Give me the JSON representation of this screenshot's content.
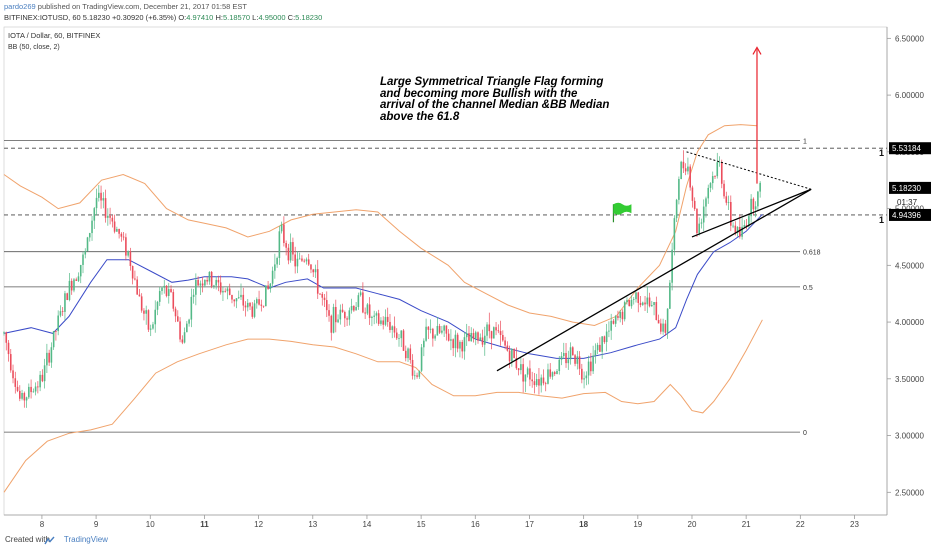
{
  "header": {
    "author": "pardo269",
    "published": "published on TradingView.com, December 21, 2017 01:58 EST",
    "symbol": "BITFINEX:IOTUSD, 60",
    "last": "5.18230",
    "change": "+0.30920 (+6.35%)",
    "ohlc_open_label": "O:",
    "ohlc_open": "4.97410",
    "ohlc_high_label": "H:",
    "ohlc_high": "5.18570",
    "ohlc_low_label": "L:",
    "ohlc_low": "4.95000",
    "ohlc_close_label": "C:",
    "ohlc_close": "5.18230"
  },
  "footer": {
    "created_with": "Created with",
    "brand": "TradingView"
  },
  "colors": {
    "up": "#53b987",
    "down": "#eb4d5c",
    "bb_outer": "#f0a36c",
    "bb_basis": "#3b4bc8",
    "trendline": "#000000",
    "arrow": "#e8202a",
    "grid": "#000000",
    "flag": "#33cc33",
    "price_tag": "#000000"
  },
  "chart_data": {
    "type": "candlestick",
    "title": "IOTA / Dollar, 60, BITFINEX",
    "indicator": "BB (50, close, 2)",
    "ylim": [
      2.3,
      6.6
    ],
    "xlim": [
      7.3,
      23.6
    ],
    "yticks": [
      2.5,
      3.0,
      3.5,
      4.0,
      4.5,
      5.0,
      5.5,
      6.0,
      6.5
    ],
    "ytick_labels": [
      "2.50000",
      "3.00000",
      "3.50000",
      "4.00000",
      "4.50000",
      "5.00000",
      "5.50000",
      "6.00000",
      "6.50000"
    ],
    "xticks": [
      8,
      9,
      10,
      11,
      12,
      13,
      14,
      15,
      16,
      17,
      18,
      19,
      20,
      21,
      22,
      23
    ],
    "xtick_labels": [
      "8",
      "9",
      "10",
      "11",
      "12",
      "13",
      "14",
      "15",
      "16",
      "17",
      "18",
      "19",
      "20",
      "21",
      "22",
      "23"
    ],
    "bold_xticks": [
      "11",
      "18"
    ],
    "fib_levels": [
      {
        "label": "1",
        "value": 5.6
      },
      {
        "label": "0.618",
        "value": 4.62
      },
      {
        "label": "0.5",
        "value": 4.31
      },
      {
        "label": "0",
        "value": 3.03
      }
    ],
    "dashed_levels": [
      {
        "value": 5.53184,
        "label": "5.53184",
        "marker": "1"
      },
      {
        "value": 4.94396,
        "label": "4.94396",
        "marker": "1"
      }
    ],
    "last_price": {
      "value": 5.1823,
      "label": "5.18230",
      "countdown": "01:37"
    },
    "annotation": "Large Symmetrical Triangle Flag forming and becoming more Bullish with the arrival of the channel Median &BB Median above the 61.8",
    "trendlines": [
      {
        "style": "solid",
        "from": [
          16.4,
          3.57
        ],
        "to": [
          22.2,
          5.17
        ]
      },
      {
        "style": "solid",
        "from": [
          20.0,
          4.75
        ],
        "to": [
          22.2,
          5.17
        ]
      },
      {
        "style": "dotted",
        "from": [
          19.9,
          5.5
        ],
        "to": [
          22.2,
          5.17
        ]
      }
    ],
    "arrow": {
      "from": [
        21.2,
        5.22
      ],
      "to": [
        21.2,
        6.42
      ]
    },
    "flag": {
      "x": 18.55,
      "y": 4.95
    },
    "bb_basis": [
      [
        7.3,
        3.9
      ],
      [
        7.8,
        3.95
      ],
      [
        8.2,
        3.9
      ],
      [
        8.5,
        4.05
      ],
      [
        8.9,
        4.35
      ],
      [
        9.2,
        4.55
      ],
      [
        9.6,
        4.55
      ],
      [
        10.0,
        4.45
      ],
      [
        10.4,
        4.35
      ],
      [
        10.7,
        4.37
      ],
      [
        11.0,
        4.4
      ],
      [
        11.5,
        4.4
      ],
      [
        11.8,
        4.38
      ],
      [
        12.2,
        4.3
      ],
      [
        12.5,
        4.35
      ],
      [
        12.9,
        4.38
      ],
      [
        13.2,
        4.3
      ],
      [
        13.5,
        4.3
      ],
      [
        13.8,
        4.3
      ],
      [
        14.2,
        4.25
      ],
      [
        14.6,
        4.2
      ],
      [
        15.0,
        4.1
      ],
      [
        15.5,
        4.0
      ],
      [
        16.0,
        3.85
      ],
      [
        16.5,
        3.78
      ],
      [
        17.0,
        3.72
      ],
      [
        17.5,
        3.68
      ],
      [
        18.0,
        3.68
      ],
      [
        18.5,
        3.73
      ],
      [
        19.0,
        3.8
      ],
      [
        19.4,
        3.85
      ],
      [
        19.7,
        3.95
      ],
      [
        19.9,
        4.2
      ],
      [
        20.1,
        4.42
      ],
      [
        20.4,
        4.62
      ],
      [
        20.7,
        4.7
      ],
      [
        21.0,
        4.8
      ],
      [
        21.3,
        4.95
      ]
    ],
    "bb_upper": [
      [
        7.3,
        5.3
      ],
      [
        7.6,
        5.2
      ],
      [
        8.0,
        5.1
      ],
      [
        8.3,
        5.0
      ],
      [
        8.7,
        5.05
      ],
      [
        9.1,
        5.25
      ],
      [
        9.5,
        5.3
      ],
      [
        9.9,
        5.22
      ],
      [
        10.3,
        5.0
      ],
      [
        10.7,
        4.9
      ],
      [
        11.0,
        4.87
      ],
      [
        11.4,
        4.83
      ],
      [
        11.8,
        4.75
      ],
      [
        12.2,
        4.8
      ],
      [
        12.6,
        4.9
      ],
      [
        13.0,
        4.95
      ],
      [
        13.4,
        4.97
      ],
      [
        13.8,
        4.99
      ],
      [
        14.2,
        4.97
      ],
      [
        14.6,
        4.8
      ],
      [
        15.0,
        4.65
      ],
      [
        15.5,
        4.5
      ],
      [
        15.8,
        4.35
      ],
      [
        16.2,
        4.25
      ],
      [
        16.6,
        4.15
      ],
      [
        17.0,
        4.08
      ],
      [
        17.4,
        4.05
      ],
      [
        17.8,
        4.0
      ],
      [
        18.2,
        3.97
      ],
      [
        18.6,
        4.05
      ],
      [
        19.0,
        4.3
      ],
      [
        19.4,
        4.5
      ],
      [
        19.7,
        4.8
      ],
      [
        19.9,
        5.2
      ],
      [
        20.1,
        5.5
      ],
      [
        20.3,
        5.65
      ],
      [
        20.6,
        5.73
      ],
      [
        20.9,
        5.74
      ],
      [
        21.2,
        5.73
      ]
    ],
    "bb_lower": [
      [
        7.3,
        2.5
      ],
      [
        7.7,
        2.78
      ],
      [
        8.1,
        2.95
      ],
      [
        8.5,
        3.02
      ],
      [
        8.9,
        3.05
      ],
      [
        9.3,
        3.1
      ],
      [
        9.7,
        3.32
      ],
      [
        10.1,
        3.55
      ],
      [
        10.5,
        3.65
      ],
      [
        10.9,
        3.72
      ],
      [
        11.4,
        3.8
      ],
      [
        11.8,
        3.85
      ],
      [
        12.2,
        3.85
      ],
      [
        12.6,
        3.83
      ],
      [
        13.0,
        3.8
      ],
      [
        13.4,
        3.78
      ],
      [
        13.8,
        3.72
      ],
      [
        14.2,
        3.65
      ],
      [
        14.6,
        3.65
      ],
      [
        14.9,
        3.6
      ],
      [
        15.2,
        3.45
      ],
      [
        15.6,
        3.35
      ],
      [
        16.0,
        3.35
      ],
      [
        16.4,
        3.38
      ],
      [
        16.8,
        3.38
      ],
      [
        17.2,
        3.35
      ],
      [
        17.6,
        3.33
      ],
      [
        18.0,
        3.37
      ],
      [
        18.4,
        3.38
      ],
      [
        18.7,
        3.3
      ],
      [
        19.0,
        3.28
      ],
      [
        19.3,
        3.3
      ],
      [
        19.6,
        3.45
      ],
      [
        19.8,
        3.35
      ],
      [
        20.0,
        3.22
      ],
      [
        20.2,
        3.2
      ],
      [
        20.4,
        3.3
      ],
      [
        20.7,
        3.5
      ],
      [
        21.0,
        3.75
      ],
      [
        21.3,
        4.02
      ]
    ],
    "candle_anchors": [
      [
        7.3,
        3.9
      ],
      [
        7.6,
        3.3
      ],
      [
        8.0,
        3.5
      ],
      [
        8.3,
        4.0
      ],
      [
        8.5,
        4.3
      ],
      [
        8.8,
        4.6
      ],
      [
        9.0,
        5.1
      ],
      [
        9.3,
        4.9
      ],
      [
        9.6,
        4.6
      ],
      [
        9.8,
        4.2
      ],
      [
        10.0,
        3.9
      ],
      [
        10.2,
        4.3
      ],
      [
        10.4,
        4.2
      ],
      [
        10.6,
        3.8
      ],
      [
        10.8,
        4.3
      ],
      [
        11.0,
        4.4
      ],
      [
        11.3,
        4.3
      ],
      [
        11.6,
        4.2
      ],
      [
        11.9,
        4.1
      ],
      [
        12.2,
        4.3
      ],
      [
        12.4,
        4.8
      ],
      [
        12.7,
        4.5
      ],
      [
        12.9,
        4.6
      ],
      [
        13.1,
        4.3
      ],
      [
        13.3,
        4.0
      ],
      [
        13.6,
        4.1
      ],
      [
        13.9,
        4.2
      ],
      [
        14.1,
        4.0
      ],
      [
        14.4,
        4.0
      ],
      [
        14.7,
        3.8
      ],
      [
        14.9,
        3.5
      ],
      [
        15.1,
        3.9
      ],
      [
        15.4,
        3.9
      ],
      [
        15.7,
        3.8
      ],
      [
        16.0,
        3.85
      ],
      [
        16.3,
        3.95
      ],
      [
        16.6,
        3.75
      ],
      [
        16.9,
        3.55
      ],
      [
        17.2,
        3.5
      ],
      [
        17.5,
        3.6
      ],
      [
        17.8,
        3.75
      ],
      [
        18.0,
        3.55
      ],
      [
        18.3,
        3.8
      ],
      [
        18.6,
        4.0
      ],
      [
        18.8,
        4.15
      ],
      [
        19.0,
        4.25
      ],
      [
        19.3,
        4.1
      ],
      [
        19.5,
        3.9
      ],
      [
        19.6,
        4.4
      ],
      [
        19.75,
        5.3
      ],
      [
        19.9,
        5.45
      ],
      [
        20.1,
        4.8
      ],
      [
        20.3,
        5.2
      ],
      [
        20.5,
        5.4
      ],
      [
        20.7,
        4.9
      ],
      [
        20.9,
        4.75
      ],
      [
        21.1,
        5.05
      ],
      [
        21.3,
        5.18
      ]
    ]
  }
}
